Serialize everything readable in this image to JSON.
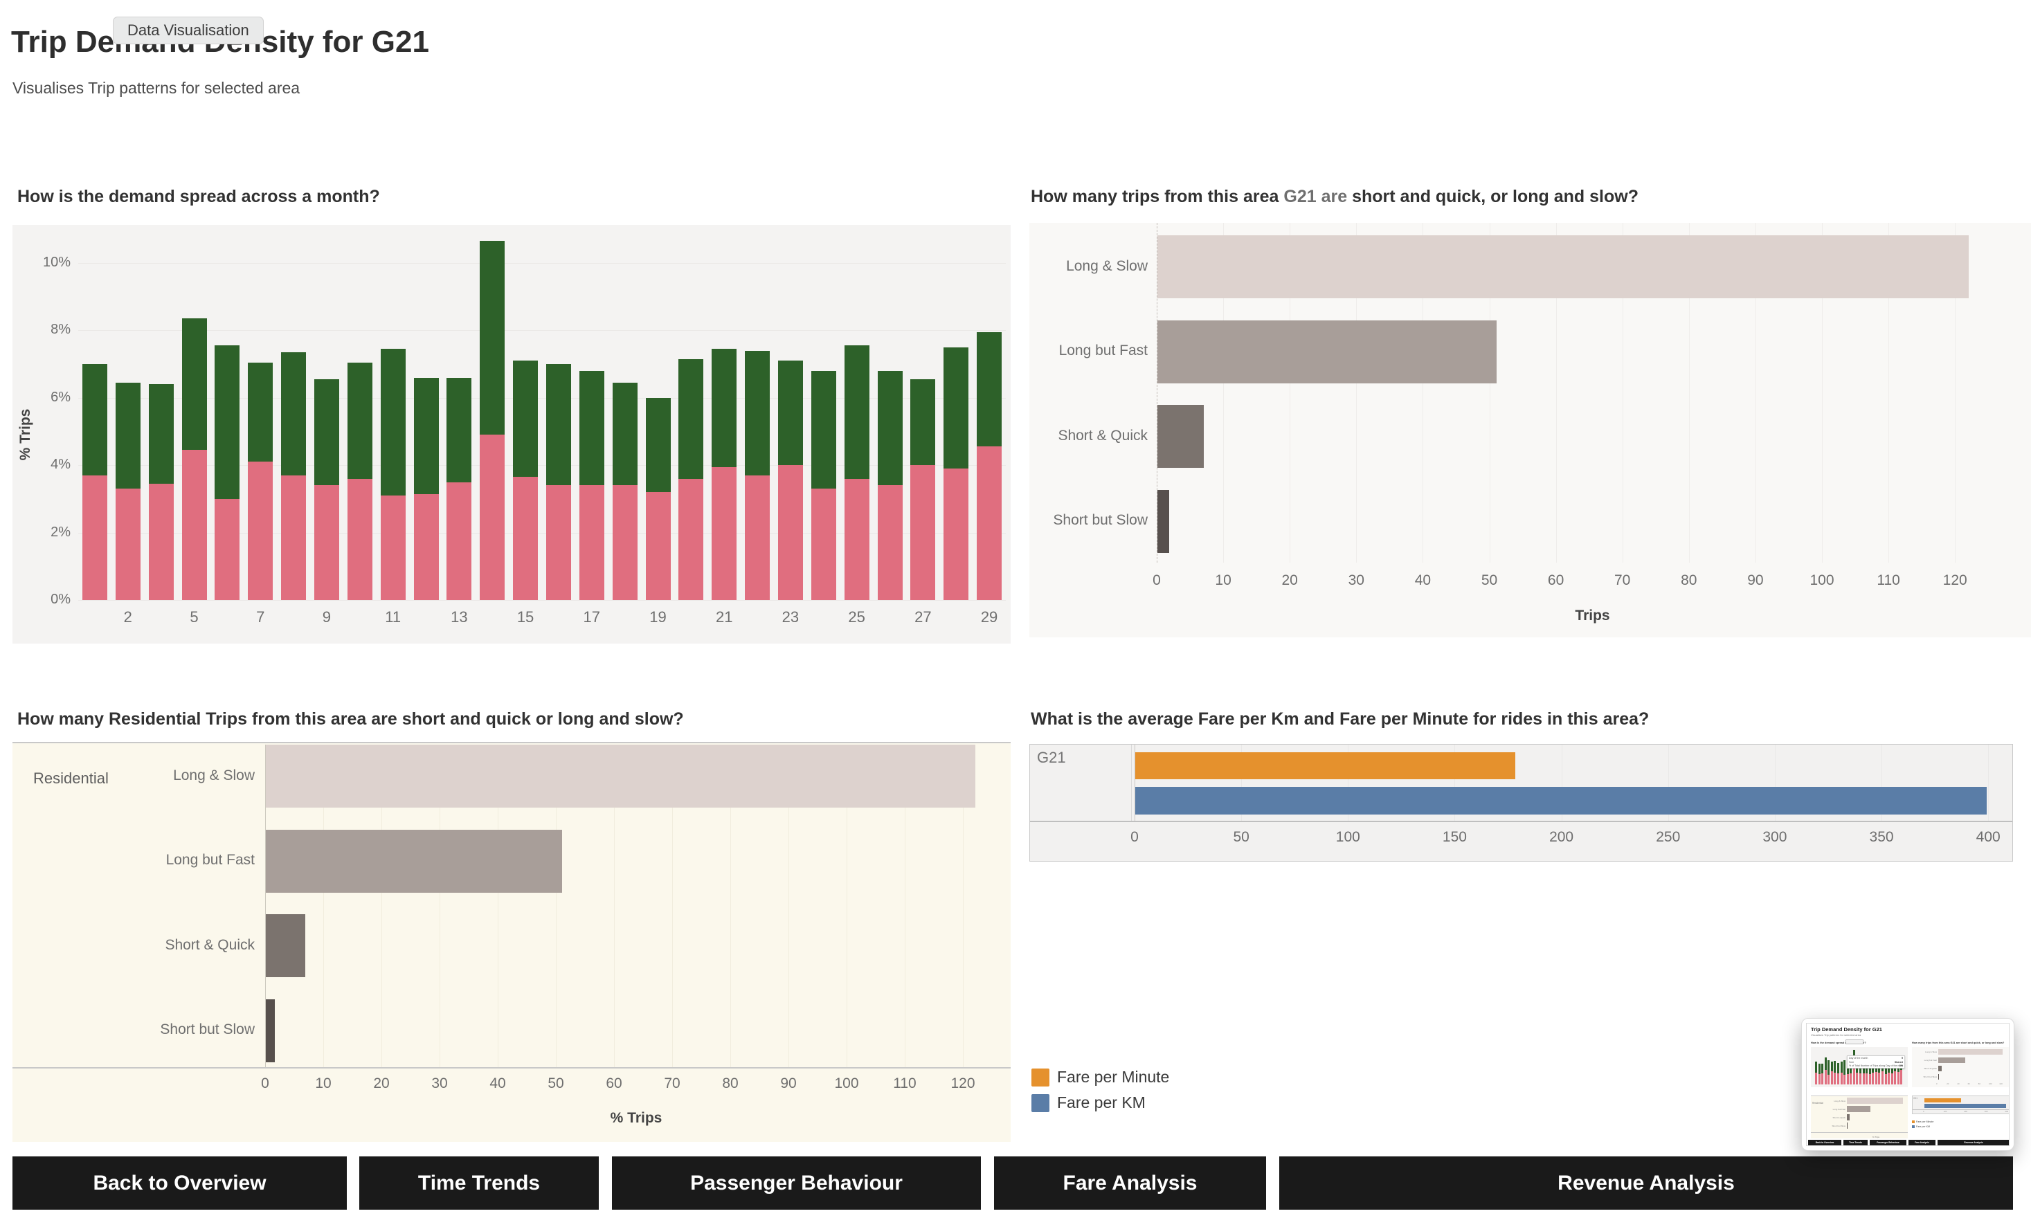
{
  "header": {
    "chip": "Data Visualisation",
    "title": "Trip Demand Density for G21",
    "subtitle": "Visualises Trip patterns for selected area"
  },
  "nav": {
    "buttons": [
      "Back to Overview",
      "Time Trends",
      "Passenger Behaviour",
      "Fare Analysis",
      "Revenue Analysis"
    ]
  },
  "colors": {
    "pink": "#E06E7F",
    "green": "#2D6129",
    "long_slow": "#DDD2CE",
    "long_fast": "#A89E99",
    "short_quick": "#7B736E",
    "short_slow": "#57504D",
    "orange": "#E5912D",
    "blue": "#5A7DA7",
    "button_bg": "#1A1A1A"
  },
  "chart_data": [
    {
      "id": "demand",
      "type": "bar",
      "title": "How is the demand spread across a month?",
      "ylabel": "% Trips",
      "ylim": [
        0,
        11.13
      ],
      "yticks": [
        0,
        2,
        4,
        6,
        8,
        10
      ],
      "ytick_suffix": "%",
      "days": [
        1,
        2,
        3,
        5,
        6,
        7,
        8,
        9,
        10,
        11,
        12,
        13,
        14,
        15,
        16,
        17,
        18,
        19,
        20,
        21,
        22,
        23,
        24,
        25,
        26,
        27,
        28,
        29
      ],
      "x_labeled_days": [
        2,
        5,
        7,
        9,
        11,
        13,
        15,
        17,
        19,
        21,
        23,
        25,
        27,
        29
      ],
      "series": [
        {
          "name": "pink",
          "color": "#E06E7F",
          "values": [
            3.7,
            3.3,
            3.45,
            4.45,
            3.0,
            4.1,
            3.7,
            3.4,
            3.6,
            3.1,
            3.15,
            3.5,
            4.9,
            3.65,
            3.4,
            3.4,
            3.4,
            3.2,
            3.6,
            3.95,
            3.7,
            4.0,
            3.3,
            3.6,
            3.4,
            4.0,
            3.9,
            4.55
          ]
        },
        {
          "name": "green",
          "color": "#2D6129",
          "values": [
            3.3,
            3.15,
            2.95,
            3.9,
            4.55,
            2.95,
            3.65,
            3.15,
            3.45,
            4.35,
            3.45,
            3.1,
            5.75,
            3.45,
            3.6,
            3.4,
            3.05,
            2.8,
            3.55,
            3.5,
            3.7,
            3.1,
            3.5,
            3.95,
            3.4,
            2.55,
            3.6,
            3.4
          ]
        }
      ]
    },
    {
      "id": "trip-types",
      "type": "bar-horizontal",
      "title_parts": [
        "How many trips from this area ",
        "G21 are",
        " short and quick, or long and slow?"
      ],
      "categories": [
        "Long & Slow",
        "Long but Fast",
        "Short & Quick",
        "Short but Slow"
      ],
      "values": [
        122,
        51,
        7,
        1.8
      ],
      "bar_colors": [
        "#DDD2CE",
        "#A89E99",
        "#7B736E",
        "#57504D"
      ],
      "xlabel": "Trips",
      "xlim": [
        0,
        131
      ],
      "xticks": [
        0,
        10,
        20,
        30,
        40,
        50,
        60,
        70,
        80,
        90,
        100,
        110,
        120
      ]
    },
    {
      "id": "residential",
      "type": "bar-horizontal",
      "title": "How many Residential Trips from this area are short and quick or long and slow?",
      "row_label": "Residential",
      "categories": [
        "Long & Slow",
        "Long but Fast",
        "Short & Quick",
        "Short but Slow"
      ],
      "values": [
        122,
        51,
        6.8,
        1.5
      ],
      "bar_colors": [
        "#DDD2CE",
        "#A89E99",
        "#7B736E",
        "#57504D"
      ],
      "xlabel": "% Trips",
      "xlim": [
        0,
        127.6
      ],
      "xticks": [
        0,
        10,
        20,
        30,
        40,
        50,
        60,
        70,
        80,
        90,
        100,
        110,
        120
      ]
    },
    {
      "id": "fare",
      "type": "bar-horizontal-grouped",
      "title": "What is the average Fare per Km and Fare per Minute for rides in this area?",
      "row_label": "G21",
      "series": [
        {
          "name": "Fare per Minute",
          "color": "#E5912D",
          "value": 178
        },
        {
          "name": "Fare per KM",
          "color": "#5A7DA7",
          "value": 399
        }
      ],
      "legend": [
        "Fare per Minute",
        "Fare per KM"
      ],
      "xlim": [
        0,
        412
      ],
      "xticks": [
        0,
        50,
        100,
        150,
        200,
        250,
        300,
        350,
        400
      ]
    }
  ],
  "minimap": {
    "tooltip_rows": [
      {
        "label": "Day of the month",
        "value": "9"
      },
      {
        "label": "Sole",
        "value": "Shared"
      },
      {
        "label": "% of Total Number of Trips along Day of the month",
        "value": "3%"
      }
    ]
  }
}
